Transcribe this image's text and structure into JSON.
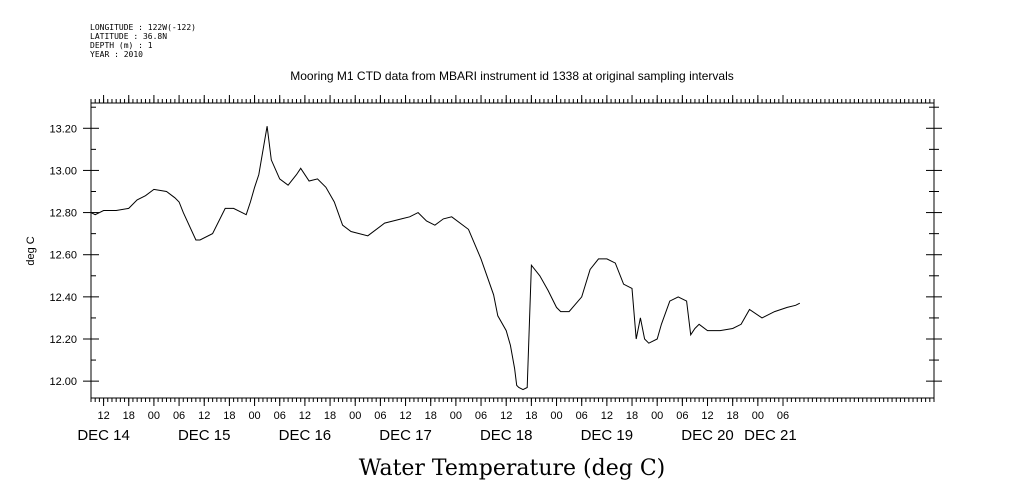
{
  "header": {
    "longitude": "LONGITUDE : 122W(-122)",
    "latitude": "LATITUDE : 36.8N",
    "depth": "DEPTH (m) : 1",
    "year": "YEAR : 2010"
  },
  "chart_data": {
    "type": "line",
    "title": "Mooring M1 CTD data from MBARI instrument id 1338 at original sampling intervals",
    "xlabel": "Water Temperature (deg C)",
    "ylabel": "deg C",
    "ylim": [
      11.92,
      13.32
    ],
    "xlim_hours": [
      9,
      210
    ],
    "y_ticks": [
      "13.20",
      "13.00",
      "12.80",
      "12.60",
      "12.40",
      "12.20",
      "12.00"
    ],
    "y_tick_values": [
      13.2,
      13.0,
      12.8,
      12.6,
      12.4,
      12.2,
      12.0
    ],
    "x_tick_labels": [
      "12",
      "18",
      "00",
      "06",
      "12",
      "18",
      "00",
      "06",
      "12",
      "18",
      "00",
      "06",
      "12",
      "18",
      "00",
      "06",
      "12",
      "18",
      "00",
      "06",
      "12",
      "18",
      "00",
      "06",
      "12",
      "18",
      "00",
      "06"
    ],
    "day_labels": [
      "DEC 14",
      "DEC 15",
      "DEC 16",
      "DEC 17",
      "DEC 18",
      "DEC 19",
      "DEC 20",
      "DEC 21"
    ],
    "series": [
      {
        "color": "#000000",
        "x": [
          "DEC 14 09:00",
          "DEC 14 10:00",
          "DEC 14 12:00",
          "DEC 14 15:00",
          "DEC 14 18:00",
          "DEC 14 20:00",
          "DEC 14 22:00",
          "DEC 15 00:00",
          "DEC 15 03:00",
          "DEC 15 05:00",
          "DEC 15 06:00",
          "DEC 15 07:00",
          "DEC 15 10:00",
          "DEC 15 11:00",
          "DEC 15 14:00",
          "DEC 15 17:00",
          "DEC 15 19:00",
          "DEC 15 21:00",
          "DEC 15 22:00",
          "DEC 15 23:00",
          "DEC 16 00:00",
          "DEC 16 01:00",
          "DEC 16 03:00",
          "DEC 16 04:00",
          "DEC 16 06:00",
          "DEC 16 08:00",
          "DEC 16 10:00",
          "DEC 16 11:00",
          "DEC 16 13:00",
          "DEC 16 15:00",
          "DEC 16 17:00",
          "DEC 16 19:00",
          "DEC 16 21:00",
          "DEC 16 23:00",
          "DEC 17 03:00",
          "DEC 17 07:00",
          "DEC 17 09:00",
          "DEC 17 11:00",
          "DEC 17 13:00",
          "DEC 17 15:00",
          "DEC 17 17:00",
          "DEC 17 19:00",
          "DEC 17 21:00",
          "DEC 17 23:00",
          "DEC 18 03:00",
          "DEC 18 06:00",
          "DEC 18 09:00",
          "DEC 18 10:00",
          "DEC 18 12:00",
          "DEC 18 13:00",
          "DEC 18 14:00",
          "DEC 18 14:30",
          "DEC 18 15:00",
          "DEC 18 16:00",
          "DEC 18 17:00",
          "DEC 18 18:00",
          "DEC 18 20:00",
          "DEC 18 22:00",
          "DEC 19 00:00",
          "DEC 19 01:00",
          "DEC 19 03:00",
          "DEC 19 06:00",
          "DEC 19 08:00",
          "DEC 19 10:00",
          "DEC 19 12:00",
          "DEC 19 14:00",
          "DEC 19 16:00",
          "DEC 19 18:00",
          "DEC 19 19:00",
          "DEC 19 20:00",
          "DEC 19 21:00",
          "DEC 19 22:00",
          "DEC 20 00:00",
          "DEC 20 01:00",
          "DEC 20 03:00",
          "DEC 20 05:00",
          "DEC 20 07:00",
          "DEC 20 08:00",
          "DEC 20 09:00",
          "DEC 20 10:00",
          "DEC 20 12:00",
          "DEC 20 15:00",
          "DEC 20 18:00",
          "DEC 20 20:00",
          "DEC 20 22:00",
          "DEC 21 01:00",
          "DEC 21 04:00",
          "DEC 21 07:00",
          "DEC 21 09:00",
          "DEC 21 10:00"
        ],
        "y": [
          12.8,
          12.79,
          12.81,
          12.81,
          12.82,
          12.86,
          12.88,
          12.91,
          12.9,
          12.87,
          12.85,
          12.8,
          12.67,
          12.67,
          12.7,
          12.82,
          12.82,
          12.8,
          12.79,
          12.85,
          12.92,
          12.98,
          13.21,
          13.05,
          12.96,
          12.93,
          12.98,
          13.01,
          12.95,
          12.96,
          12.92,
          12.85,
          12.74,
          12.71,
          12.69,
          12.75,
          12.76,
          12.77,
          12.78,
          12.8,
          12.76,
          12.74,
          12.77,
          12.78,
          12.72,
          12.58,
          12.41,
          12.31,
          12.24,
          12.17,
          12.06,
          11.98,
          11.97,
          11.96,
          11.97,
          12.55,
          12.5,
          12.43,
          12.35,
          12.33,
          12.33,
          12.4,
          12.53,
          12.58,
          12.58,
          12.56,
          12.46,
          12.44,
          12.2,
          12.3,
          12.2,
          12.18,
          12.2,
          12.27,
          12.38,
          12.4,
          12.38,
          12.22,
          12.25,
          12.27,
          12.24,
          12.24,
          12.25,
          12.27,
          12.34,
          12.3,
          12.33,
          12.35,
          12.36,
          12.37
        ]
      }
    ]
  }
}
